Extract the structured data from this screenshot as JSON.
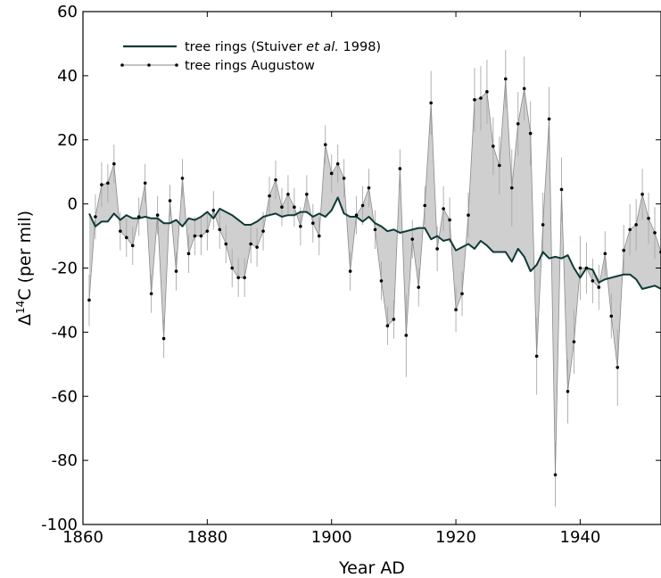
{
  "chart_data": {
    "type": "line",
    "xlabel": "Year AD",
    "ylabel_parts": {
      "delta": "Δ",
      "sup": "14",
      "rest": "C (per mil)"
    },
    "xlim": [
      1860,
      1953
    ],
    "ylim": [
      -100,
      60
    ],
    "x_ticks": [
      1860,
      1880,
      1900,
      1920,
      1940
    ],
    "y_ticks": [
      -100,
      -80,
      -60,
      -40,
      -20,
      0,
      20,
      40,
      60
    ],
    "grid": false,
    "legend_position": "top-left",
    "legend": [
      {
        "pre": "tree rings (Stuiver ",
        "italic": "et al.",
        "post": " 1998)"
      },
      {
        "text": "tree rings Augustow"
      }
    ],
    "colors": {
      "stuiver": "#0f3a36",
      "augustow": "#000000",
      "fill": "#cfcfcf",
      "error_bar": "#a8a8a8"
    },
    "series": [
      {
        "key": "stuiver",
        "x": [
          1861,
          1862,
          1863,
          1864,
          1865,
          1866,
          1867,
          1868,
          1869,
          1870,
          1871,
          1872,
          1873,
          1874,
          1875,
          1876,
          1877,
          1878,
          1879,
          1880,
          1881,
          1882,
          1883,
          1884,
          1885,
          1886,
          1887,
          1888,
          1889,
          1890,
          1891,
          1892,
          1893,
          1894,
          1895,
          1896,
          1897,
          1898,
          1899,
          1900,
          1901,
          1902,
          1903,
          1904,
          1905,
          1906,
          1907,
          1908,
          1909,
          1910,
          1911,
          1912,
          1913,
          1914,
          1915,
          1916,
          1917,
          1918,
          1919,
          1920,
          1921,
          1922,
          1923,
          1924,
          1925,
          1926,
          1927,
          1928,
          1929,
          1930,
          1931,
          1932,
          1933,
          1934,
          1935,
          1936,
          1937,
          1938,
          1939,
          1940,
          1941,
          1942,
          1943,
          1944,
          1945,
          1946,
          1947,
          1948,
          1949,
          1950,
          1951,
          1952,
          1953
        ],
        "y": [
          -3,
          -7,
          -5.5,
          -5.5,
          -3,
          -5,
          -3.5,
          -4.5,
          -4.5,
          -4,
          -4.5,
          -4.5,
          -6,
          -6,
          -5,
          -7,
          -4.5,
          -5,
          -4,
          -2.5,
          -4.5,
          -1.5,
          -2.5,
          -3.5,
          -5,
          -6.5,
          -6.5,
          -5.5,
          -4,
          -3.5,
          -3,
          -4,
          -3.5,
          -3.5,
          -2.5,
          -2.5,
          -4,
          -3,
          -4,
          -2,
          2,
          -3,
          -4,
          -4,
          -5.5,
          -4,
          -6,
          -7,
          -8.5,
          -8,
          -9,
          -8.5,
          -8,
          -7.5,
          -7.5,
          -11,
          -10,
          -11.5,
          -11,
          -14.5,
          -13.5,
          -12.5,
          -14,
          -11.5,
          -13,
          -15,
          -15,
          -15,
          -18,
          -14,
          -16.5,
          -21,
          -19,
          -15,
          -17,
          -16.5,
          -17,
          -16,
          -20,
          -23,
          -20,
          -20.5,
          -24.5,
          -23.5,
          -23,
          -22.5,
          -22,
          -22,
          -23.5,
          -26.5,
          -26,
          -25.5,
          -26.5
        ]
      },
      {
        "key": "augustow",
        "x": [
          1861,
          1862,
          1863,
          1864,
          1865,
          1866,
          1867,
          1868,
          1869,
          1870,
          1871,
          1872,
          1873,
          1874,
          1875,
          1876,
          1877,
          1878,
          1879,
          1880,
          1881,
          1882,
          1883,
          1884,
          1885,
          1886,
          1887,
          1888,
          1889,
          1890,
          1891,
          1892,
          1893,
          1894,
          1895,
          1896,
          1897,
          1898,
          1899,
          1900,
          1901,
          1902,
          1903,
          1904,
          1905,
          1906,
          1907,
          1908,
          1909,
          1910,
          1911,
          1912,
          1913,
          1914,
          1915,
          1916,
          1917,
          1918,
          1919,
          1920,
          1921,
          1922,
          1923,
          1924,
          1925,
          1926,
          1927,
          1928,
          1929,
          1930,
          1931,
          1932,
          1933,
          1934,
          1935,
          1936,
          1937,
          1938,
          1939,
          1940,
          1941,
          1942,
          1943,
          1944,
          1945,
          1946,
          1947,
          1948,
          1949,
          1950,
          1951,
          1952,
          1953
        ],
        "y": [
          -30,
          -4,
          6,
          6.5,
          12.5,
          -8.5,
          -10.5,
          -13,
          -4,
          6.5,
          -28,
          -3.5,
          -42,
          1,
          -21,
          8,
          -15.5,
          -10,
          -10,
          -8.5,
          -2,
          -8,
          -12.5,
          -20,
          -23,
          -23,
          -12.5,
          -13.5,
          -8.5,
          2.5,
          7.5,
          -1,
          3,
          -1,
          -7,
          3,
          -6,
          -10,
          18.5,
          9.5,
          12.5,
          8,
          -21,
          -3.5,
          -0.5,
          5,
          -8,
          -24,
          -38,
          -36,
          11,
          -41,
          -11,
          -26,
          -0.5,
          31.5,
          -14,
          -1.5,
          -5,
          -33,
          -28,
          -3.5,
          32.5,
          33,
          35,
          18,
          12,
          39,
          5,
          25,
          36,
          22,
          -47.5,
          -6.5,
          26.5,
          -84.5,
          4.5,
          -58.5,
          -43,
          -20,
          -20,
          -24,
          -26,
          -15.5,
          -35,
          -51,
          -14.5,
          -8,
          -6.5,
          3,
          -4.5,
          -9,
          -15
        ],
        "err": [
          8,
          7,
          7,
          6,
          6,
          6,
          6,
          6,
          6,
          6,
          6,
          6,
          6,
          5,
          6,
          6,
          6,
          6,
          6,
          6,
          6,
          6,
          6,
          6,
          6,
          6,
          6,
          6,
          6,
          6,
          6,
          6,
          6,
          6,
          6,
          6,
          6,
          6,
          6,
          6,
          6,
          6,
          6,
          6,
          6,
          6,
          6,
          6,
          6,
          6,
          6,
          13,
          6,
          6,
          6,
          10,
          7,
          7,
          7,
          7,
          7,
          7,
          10,
          10,
          10,
          9,
          9,
          9,
          12,
          10,
          10,
          10,
          12,
          10,
          10,
          10,
          10,
          10,
          10,
          10,
          8,
          7,
          7,
          7,
          7,
          12,
          8,
          8,
          8,
          8,
          8,
          8,
          8
        ]
      }
    ]
  }
}
